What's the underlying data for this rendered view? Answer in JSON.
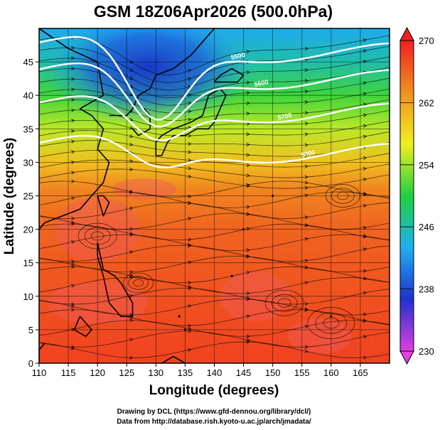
{
  "title": "GSM 18Z06Apr2026 (500.0hPa)",
  "xlabel": "Longitude (degrees)",
  "ylabel": "Latitude  (degrees)",
  "credits": {
    "line1": "Drawing by DCL (https://www.gfd-dennou.org/library/dcl/)",
    "line2": "Data from http://database.rish.kyoto-u.ac.jp/arch/jmadata/"
  },
  "chart_data": {
    "type": "heatmap",
    "variable": "temperature (K) with streamlines",
    "xlim": [
      110,
      170
    ],
    "ylim": [
      0,
      50
    ],
    "x_ticks": [
      110,
      115,
      120,
      125,
      130,
      135,
      140,
      145,
      150,
      155,
      160,
      165
    ],
    "y_ticks": [
      0,
      5,
      10,
      15,
      20,
      25,
      30,
      35,
      40,
      45
    ],
    "colorbar": {
      "range": [
        230,
        270
      ],
      "tick_labels": [
        230,
        238,
        246,
        254,
        262,
        270
      ],
      "colors": [
        "#e040e0",
        "#2030d0",
        "#20b0f0",
        "#20d040",
        "#f0f020",
        "#f09020",
        "#f02020"
      ]
    },
    "temperature_gradient_by_latitude": [
      {
        "lat": 0,
        "temp": 268
      },
      {
        "lat": 10,
        "temp": 267
      },
      {
        "lat": 20,
        "temp": 266
      },
      {
        "lat": 26,
        "temp": 264
      },
      {
        "lat": 30,
        "temp": 260
      },
      {
        "lat": 35,
        "temp": 255
      },
      {
        "lat": 40,
        "temp": 251
      },
      {
        "lat": 45,
        "temp": 246
      },
      {
        "lat": 50,
        "temp": 243
      }
    ],
    "cold_core": {
      "lon": 130,
      "lat": 45,
      "temp": 238
    },
    "contour_labels": [
      "5500",
      "5600",
      "5700",
      "5800"
    ]
  }
}
